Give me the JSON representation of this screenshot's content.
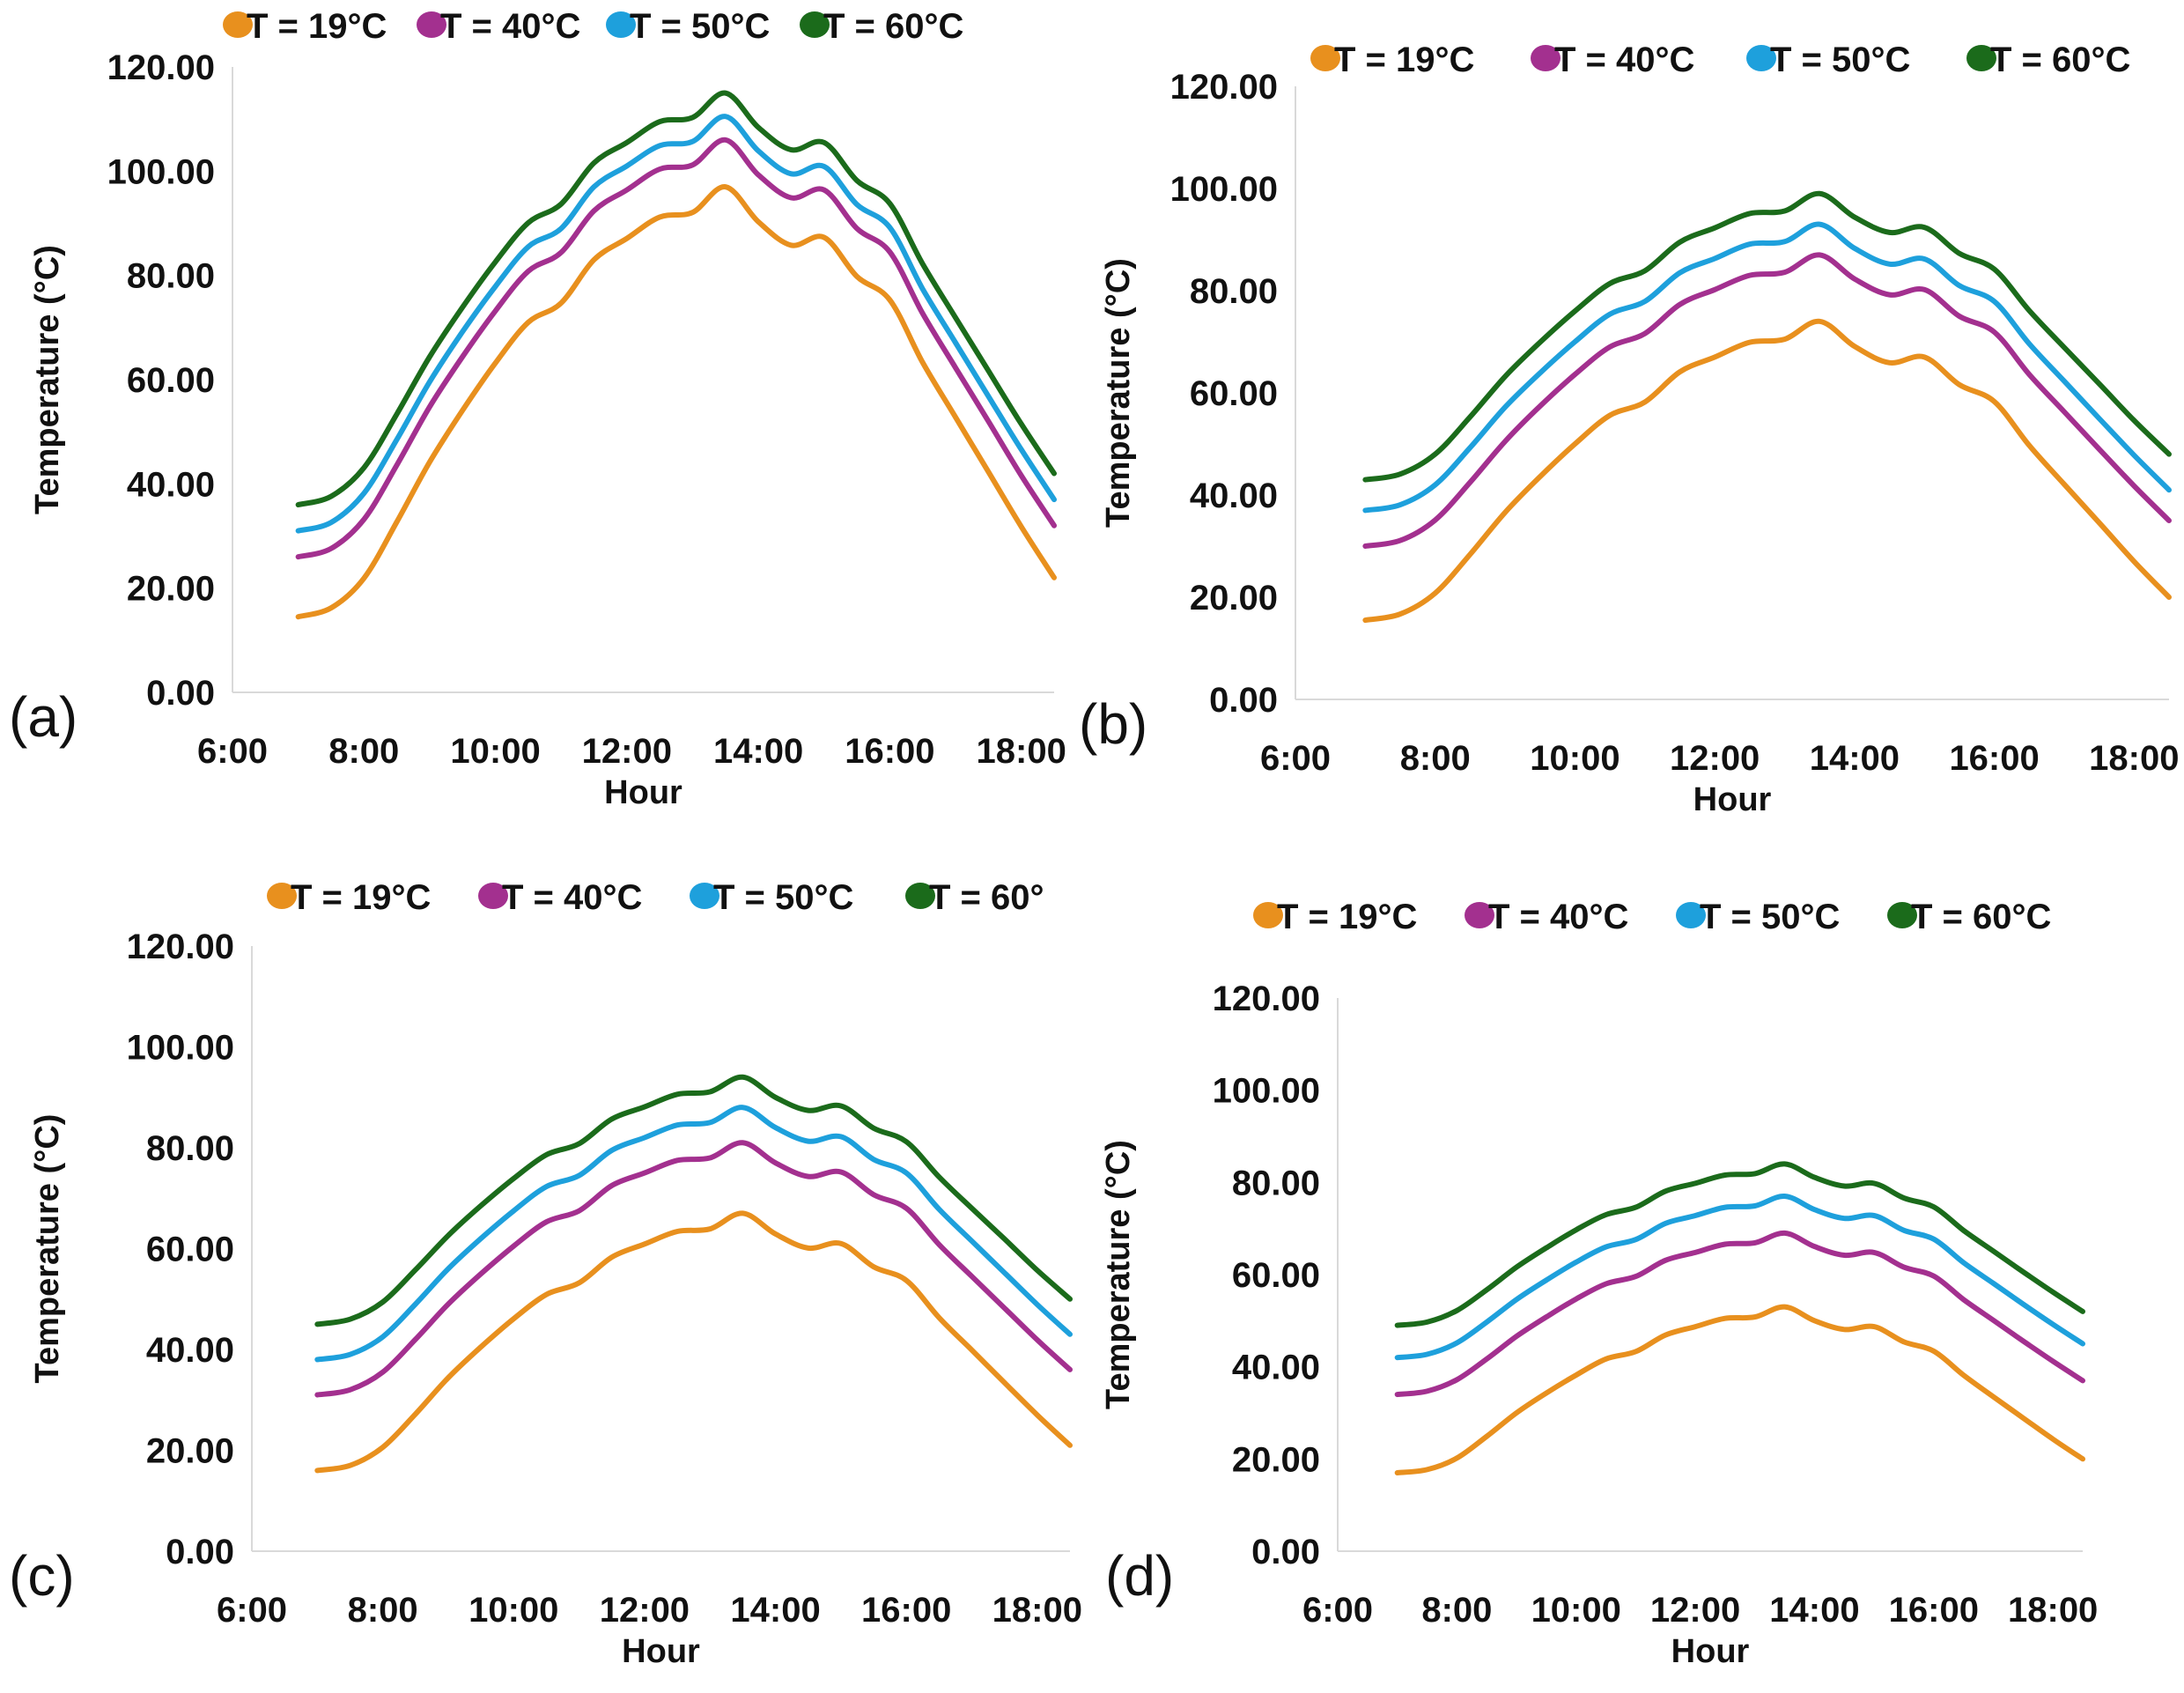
{
  "chart_data": [
    {
      "panel_label": "(a)",
      "type": "line",
      "xlabel": "Hour",
      "ylabel": "Temperature (°C)",
      "xlim": [
        6,
        18.5
      ],
      "ylim": [
        0,
        120
      ],
      "xticks": [
        "6:00",
        "8:00",
        "10:00",
        "12:00",
        "14:00",
        "16:00",
        "18:00"
      ],
      "yticks": [
        "0.00",
        "20.00",
        "40.00",
        "60.00",
        "80.00",
        "100.00",
        "120.00"
      ],
      "legend_position": "top",
      "x": [
        7,
        7.5,
        8,
        8.5,
        9,
        9.5,
        10,
        10.5,
        11,
        11.5,
        12,
        12.5,
        13,
        13.5,
        14,
        14.5,
        15,
        15.5,
        16,
        16.5,
        17,
        17.5,
        18,
        18.5
      ],
      "series": [
        {
          "name": "T = 19°C",
          "color": "#E8901E",
          "values": [
            14.5,
            16.2,
            21.9,
            32.7,
            44.2,
            54.1,
            63.2,
            71.0,
            74.7,
            83.0,
            87.1,
            91.2,
            92.1,
            97.0,
            90.3,
            85.8,
            87.3,
            79.8,
            75.3,
            63.3,
            52.8,
            42.3,
            31.8,
            22.0
          ]
        },
        {
          "name": "T = 40°C",
          "color": "#A3308F",
          "values": [
            26,
            27.6,
            33.2,
            43.6,
            54.8,
            64.4,
            73.2,
            80.8,
            84.4,
            92.4,
            96.4,
            100.4,
            101.2,
            106,
            99.3,
            94.9,
            96.4,
            89.0,
            84.5,
            72.7,
            62.3,
            52.0,
            41.6,
            32
          ]
        },
        {
          "name": "T = 50°C",
          "color": "#1EA0DC",
          "values": [
            31,
            32.6,
            38.2,
            48.5,
            59.6,
            69.2,
            77.9,
            85.5,
            89.0,
            97.0,
            101.0,
            104.9,
            105.7,
            110.5,
            103.9,
            99.5,
            100.9,
            93.6,
            89.2,
            77.4,
            67.1,
            56.8,
            46.6,
            37
          ]
        },
        {
          "name": "T = 60°C",
          "color": "#1B6B1B",
          "values": [
            36,
            37.6,
            43.1,
            53.4,
            64.4,
            73.9,
            82.6,
            90.1,
            93.7,
            101.6,
            105.5,
            109.5,
            110.3,
            115,
            108.4,
            104.1,
            105.5,
            98.2,
            93.8,
            82.2,
            71.9,
            61.7,
            51.5,
            42
          ]
        }
      ]
    },
    {
      "panel_label": "(b)",
      "type": "line",
      "xlabel": "Hour",
      "ylabel": "Temperature (°C)",
      "xlim": [
        6,
        18.5
      ],
      "ylim": [
        0,
        120
      ],
      "xticks": [
        "6:00",
        "8:00",
        "10:00",
        "12:00",
        "14:00",
        "16:00",
        "18:00"
      ],
      "yticks": [
        "0.00",
        "20.00",
        "40.00",
        "60.00",
        "80.00",
        "100.00",
        "120.00"
      ],
      "legend_position": "top",
      "x": [
        7,
        7.5,
        8,
        8.5,
        9,
        9.5,
        10,
        10.5,
        11,
        11.5,
        12,
        12.5,
        13,
        13.5,
        14,
        14.5,
        15,
        15.5,
        16,
        16.5,
        17,
        17.5,
        18,
        18.5
      ],
      "series": [
        {
          "name": "T = 19°C",
          "color": "#E8901E",
          "values": [
            15.5,
            16.7,
            20.8,
            28.4,
            36.6,
            43.6,
            50.0,
            55.6,
            58.2,
            64.1,
            67.0,
            69.9,
            70.5,
            74,
            69.1,
            65.9,
            67.0,
            61.6,
            58.3,
            49.7,
            42.1,
            34.6,
            27.0,
            20
          ]
        },
        {
          "name": "T = 40°C",
          "color": "#A3308F",
          "values": [
            30,
            31.1,
            35.1,
            42.5,
            50.5,
            57.4,
            63.6,
            69.0,
            71.6,
            77.3,
            80.2,
            83.0,
            83.6,
            87,
            82.3,
            79.2,
            80.2,
            75.0,
            71.9,
            63.6,
            56.3,
            49.0,
            41.8,
            35
          ]
        },
        {
          "name": "T = 50°C",
          "color": "#1EA0DC",
          "values": [
            37,
            38.1,
            42.0,
            49.3,
            57.2,
            63.9,
            70.0,
            75.4,
            77.9,
            83.5,
            86.3,
            89.1,
            89.6,
            93,
            88.3,
            85.2,
            86.2,
            81.0,
            77.9,
            69.6,
            62.3,
            55.0,
            47.8,
            41
          ]
        },
        {
          "name": "T = 60°C",
          "color": "#1B6B1B",
          "values": [
            43,
            44.1,
            48.0,
            55.3,
            63.2,
            69.9,
            76.0,
            81.4,
            83.9,
            89.5,
            92.3,
            95.1,
            95.6,
            99,
            94.4,
            91.4,
            92.4,
            87.3,
            84.2,
            76.1,
            68.9,
            61.8,
            54.6,
            48
          ]
        }
      ]
    },
    {
      "panel_label": "(c)",
      "type": "line",
      "xlabel": "Hour",
      "ylabel": "Temperature (°C)",
      "xlim": [
        6,
        18.5
      ],
      "ylim": [
        0,
        120
      ],
      "xticks": [
        "6:00",
        "8:00",
        "10:00",
        "12:00",
        "14:00",
        "16:00",
        "18:00"
      ],
      "yticks": [
        "0.00",
        "20.00",
        "40.00",
        "60.00",
        "80.00",
        "100.00",
        "120.00"
      ],
      "legend_position": "top",
      "x": [
        7,
        7.5,
        8,
        8.5,
        9,
        9.5,
        10,
        10.5,
        11,
        11.5,
        12,
        12.5,
        13,
        13.5,
        14,
        14.5,
        15,
        15.5,
        16,
        16.5,
        17,
        17.5,
        18,
        18.5
      ],
      "series": [
        {
          "name": "T = 19°C",
          "color": "#E8901E",
          "values": [
            16,
            17.0,
            20.6,
            27.2,
            34.4,
            40.5,
            46.1,
            50.9,
            53.2,
            58.3,
            60.9,
            63.4,
            63.9,
            67,
            62.9,
            60.1,
            61.0,
            56.4,
            53.7,
            46.3,
            39.9,
            33.4,
            27.0,
            21
          ]
        },
        {
          "name": "T = 40°C",
          "color": "#A3308F",
          "values": [
            31,
            32,
            35.5,
            42,
            49,
            55,
            60.5,
            65.3,
            67.5,
            72.5,
            75,
            77.5,
            78,
            81,
            77,
            74.3,
            75.2,
            70.7,
            68,
            60.8,
            54.5,
            48.2,
            41.9,
            36
          ]
        },
        {
          "name": "T = 50°C",
          "color": "#1EA0DC",
          "values": [
            38,
            39,
            42.5,
            49,
            56,
            62,
            67.5,
            72.3,
            74.5,
            79.5,
            82,
            84.5,
            85,
            88,
            84,
            81.3,
            82.2,
            77.7,
            75,
            67.8,
            61.5,
            55.2,
            48.9,
            43
          ]
        },
        {
          "name": "T = 60°",
          "color": "#1B6B1B",
          "values": [
            45,
            46,
            49.4,
            55.8,
            62.6,
            68.5,
            73.9,
            78.6,
            80.8,
            85.7,
            88.1,
            90.6,
            91.1,
            94,
            90,
            87.4,
            88.3,
            83.9,
            81.2,
            74.2,
            68,
            61.9,
            55.7,
            50
          ]
        }
      ]
    },
    {
      "panel_label": "(d)",
      "type": "line",
      "xlabel": "Hour",
      "ylabel": "Temperature (°C)",
      "xlim": [
        6,
        18.5
      ],
      "ylim": [
        0,
        120
      ],
      "xticks": [
        "6:00",
        "8:00",
        "10:00",
        "12:00",
        "14:00",
        "16:00",
        "18:00"
      ],
      "yticks": [
        "0.00",
        "20.00",
        "40.00",
        "60.00",
        "80.00",
        "100.00",
        "120.00"
      ],
      "legend_position": "top",
      "x": [
        7,
        7.5,
        8,
        8.5,
        9,
        9.5,
        10,
        10.5,
        11,
        11.5,
        12,
        12.5,
        13,
        13.5,
        14,
        14.5,
        15,
        15.5,
        16,
        16.5,
        17,
        17.5,
        18,
        18.5
      ],
      "series": [
        {
          "name": "T = 19°C",
          "color": "#E8901E",
          "values": [
            17,
            17.7,
            20.2,
            24.9,
            30,
            34.3,
            38.2,
            41.7,
            43.3,
            46.9,
            48.7,
            50.5,
            50.8,
            53,
            50,
            48.1,
            48.7,
            45.4,
            43.4,
            38.2,
            33.5,
            28.9,
            24.3,
            20
          ]
        },
        {
          "name": "T = 40°C",
          "color": "#A3308F",
          "values": [
            34,
            34.7,
            37.2,
            41.7,
            46.6,
            50.8,
            54.7,
            58,
            59.6,
            63.1,
            64.8,
            66.6,
            66.9,
            69,
            66.1,
            64.2,
            64.8,
            61.6,
            59.7,
            54.6,
            50.1,
            45.6,
            41.2,
            37
          ]
        },
        {
          "name": "T = 50°C",
          "color": "#1EA0DC",
          "values": [
            42,
            42.7,
            45.2,
            49.7,
            54.6,
            58.8,
            62.7,
            66,
            67.6,
            71.1,
            72.8,
            74.6,
            74.9,
            77,
            74.1,
            72.2,
            72.8,
            69.6,
            67.7,
            62.6,
            58.1,
            53.6,
            49.2,
            45
          ]
        },
        {
          "name": "T = 60°C",
          "color": "#1B6B1B",
          "values": [
            49,
            49.7,
            52.2,
            56.7,
            61.6,
            65.8,
            69.7,
            73,
            74.6,
            78.1,
            79.8,
            81.6,
            81.9,
            84,
            81.1,
            79.2,
            79.8,
            76.6,
            74.7,
            69.6,
            65.1,
            60.6,
            56.2,
            52
          ]
        }
      ]
    }
  ]
}
